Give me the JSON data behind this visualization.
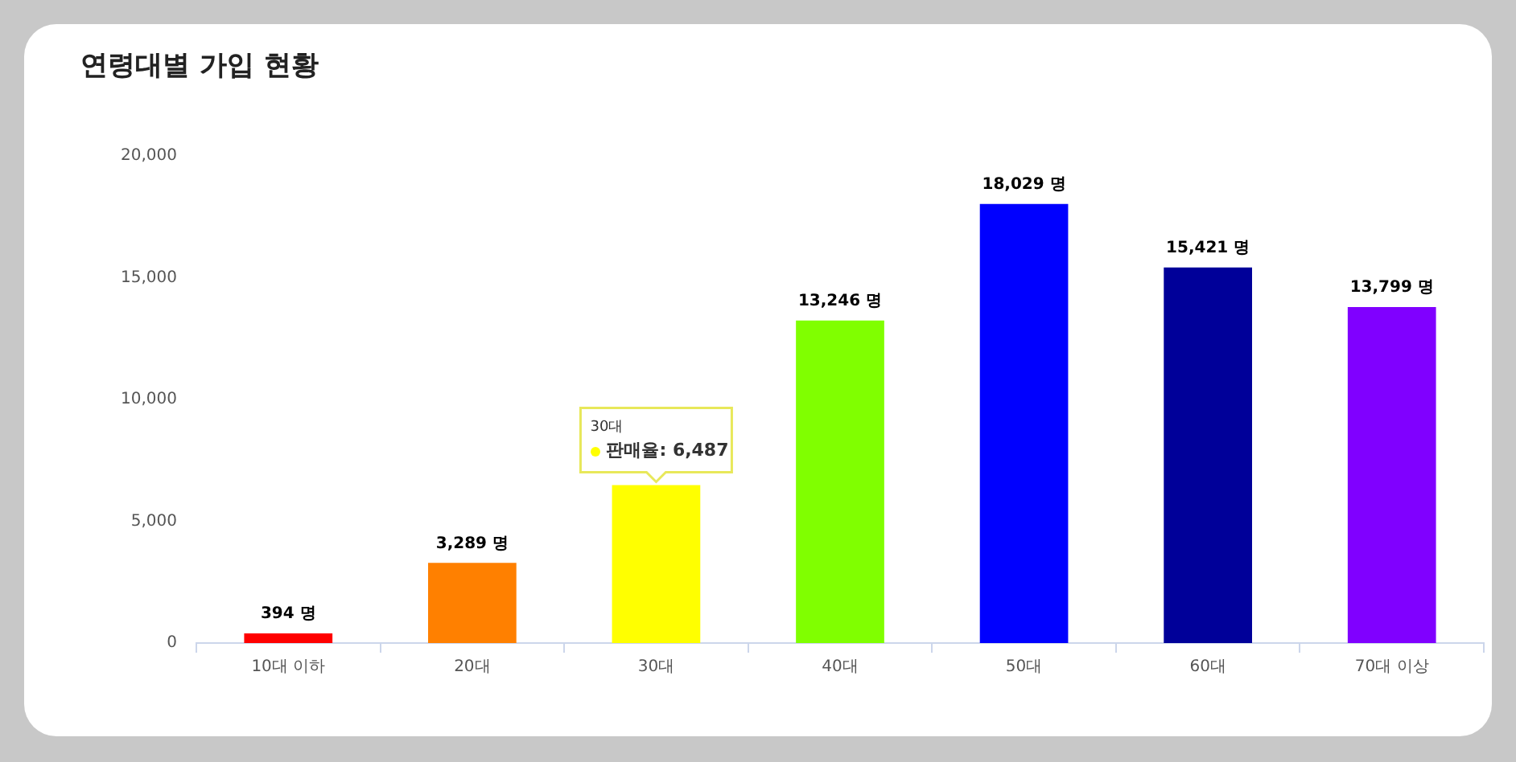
{
  "chart_data": {
    "type": "bar",
    "title": "연령대별 가입 현황",
    "categories": [
      "10대 이하",
      "20대",
      "30대",
      "40대",
      "50대",
      "60대",
      "70대 이상"
    ],
    "values": [
      394,
      3289,
      6487,
      13246,
      18029,
      15421,
      13799
    ],
    "colors": [
      "#ff0000",
      "#ff8000",
      "#ffff00",
      "#80ff00",
      "#0000ff",
      "#000099",
      "#8000ff"
    ],
    "value_labels": [
      "394 명",
      "3,289 명",
      null,
      "13,246 명",
      "18,029 명",
      "15,421 명",
      "13,799 명"
    ],
    "annotations": [
      "30대",
      {
        "text": "판매율: 6,487",
        "x": "30대",
        "y": 6487
      }
    ],
    "ylim": [
      0,
      20000
    ],
    "yticks": [
      {
        "value": 0,
        "label": "0"
      },
      {
        "value": 5000,
        "label": "5,000"
      },
      {
        "value": 10000,
        "label": "10,000"
      },
      {
        "value": 15000,
        "label": "15,000"
      },
      {
        "value": 20000,
        "label": "20,000"
      }
    ],
    "grid": false,
    "legend": false
  }
}
